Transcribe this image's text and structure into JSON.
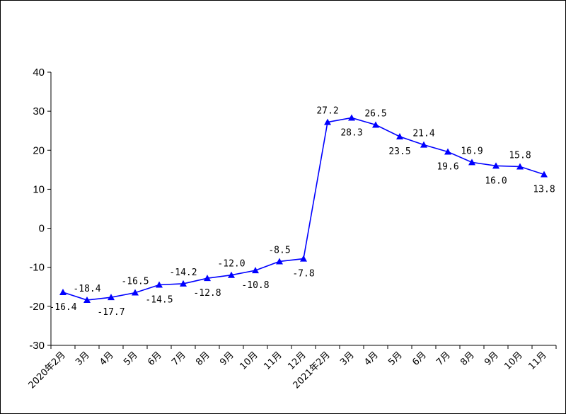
{
  "chart_data": {
    "type": "line",
    "categories": [
      "2020年2月",
      "3月",
      "4月",
      "5月",
      "6月",
      "7月",
      "8月",
      "9月",
      "10月",
      "11月",
      "12月",
      "2021年2月",
      "3月",
      "4月",
      "5月",
      "6月",
      "7月",
      "8月",
      "9月",
      "10月",
      "11月"
    ],
    "series": [
      {
        "values": [
          -16.4,
          -18.4,
          -17.7,
          -16.5,
          -14.5,
          -14.2,
          -12.8,
          -12.0,
          -10.8,
          -8.5,
          -7.8,
          27.2,
          28.3,
          26.5,
          23.5,
          21.4,
          19.6,
          16.9,
          16.0,
          15.8,
          13.8
        ]
      }
    ],
    "value_labels": [
      "-16.4",
      "-18.4",
      "-17.7",
      "-16.5",
      "-14.5",
      "-14.2",
      "-12.8",
      "-12.0",
      "-10.8",
      "-8.5",
      "-7.8",
      "27.2",
      "28.3",
      "26.5",
      "23.5",
      "21.4",
      "19.6",
      "16.9",
      "16.0",
      "15.8",
      "13.8"
    ],
    "y_ticks": [
      "40",
      "30",
      "20",
      "10",
      "0",
      "-10",
      "-20",
      "-30"
    ],
    "ylim": [
      -30,
      40
    ],
    "grid": false,
    "legend": "none",
    "colors": {
      "line": "#0000FF",
      "marker": "#0000FF",
      "axis": "#000000"
    }
  }
}
